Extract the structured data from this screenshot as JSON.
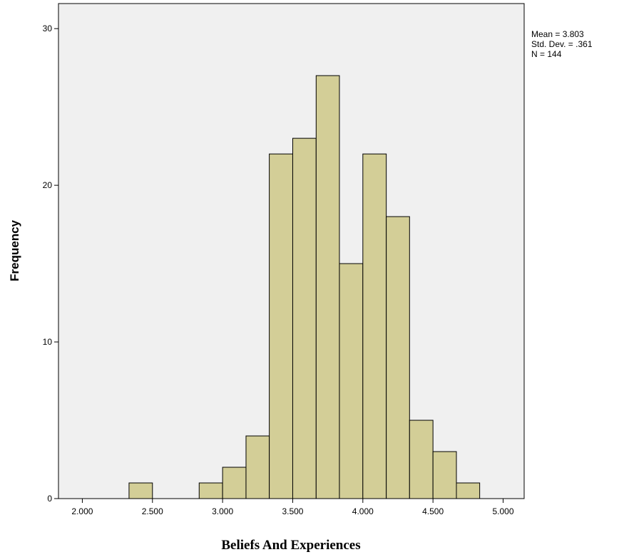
{
  "chart_data": {
    "type": "histogram",
    "x_label": "Beliefs And Experiences",
    "y_label": "Frequency",
    "stats": [
      "Mean = 3.803",
      "Std. Dev. = .361",
      "N = 144"
    ],
    "bins": [
      2.333,
      2.5,
      2.667,
      2.833,
      3.0,
      3.167,
      3.333,
      3.5,
      3.667,
      3.833,
      4.0,
      4.167,
      4.333,
      4.5,
      4.667,
      4.833
    ],
    "counts": [
      1,
      0,
      0,
      1,
      2,
      4,
      22,
      23,
      27,
      15,
      22,
      18,
      5,
      3,
      1
    ],
    "color": "#d3ce97",
    "edge_color": "#000000",
    "background": "#f0f0f0",
    "xlim": [
      1.83,
      5.15
    ],
    "ylim": [
      0,
      31.6
    ],
    "xticks": [
      {
        "value": 2,
        "label": "2.000"
      },
      {
        "value": 2.5,
        "label": "2.500"
      },
      {
        "value": 3,
        "label": "3.000"
      },
      {
        "value": 3.5,
        "label": "3.500"
      },
      {
        "value": 4,
        "label": "4.000"
      },
      {
        "value": 4.5,
        "label": "4.500"
      },
      {
        "value": 5,
        "label": "5.000"
      }
    ],
    "yticks": [
      0,
      10,
      20,
      30
    ],
    "grid": false
  }
}
